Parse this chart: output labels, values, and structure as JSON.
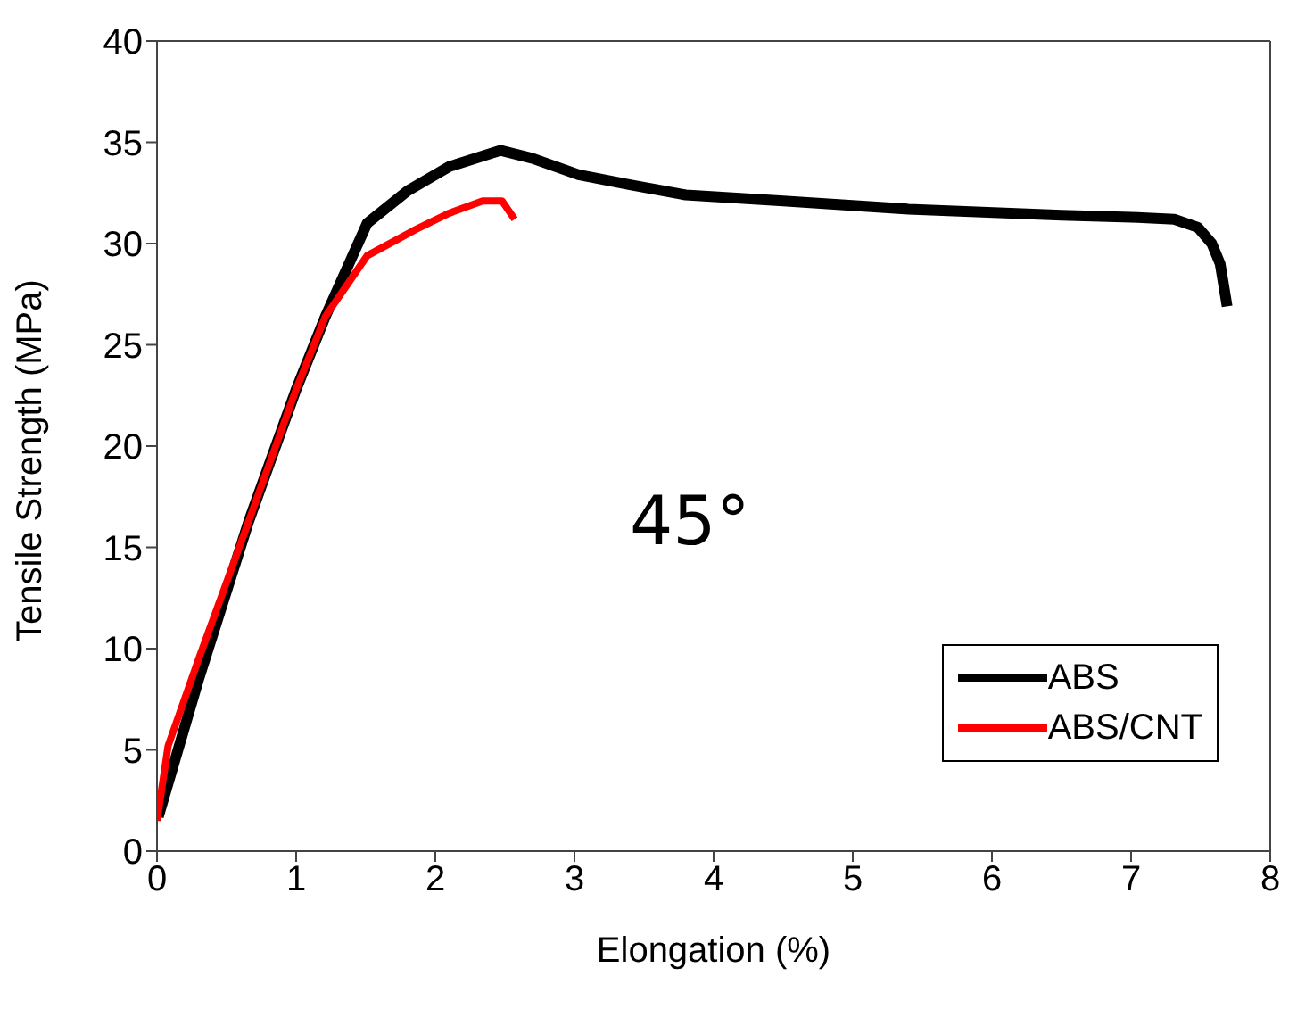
{
  "chart_data": {
    "type": "line",
    "xlabel": "Elongation (%)",
    "ylabel": "Tensile Strength (MPa)",
    "xlim": [
      0,
      8
    ],
    "xticks": [
      0,
      1,
      2,
      3,
      4,
      5,
      6,
      7,
      8
    ],
    "ylim": [
      0,
      40
    ],
    "yticks": [
      0,
      5,
      10,
      15,
      20,
      25,
      30,
      35,
      40
    ],
    "legend": "bottom right",
    "grid": false,
    "marker": "none",
    "line_style": "solid",
    "annotations": [
      "45°"
    ],
    "series": [
      {
        "name": "ABS",
        "color": "#000000",
        "x": [
          0.01,
          0.3,
          0.66,
          1.0,
          1.21,
          1.51,
          1.8,
          2.1,
          2.47,
          2.7,
          3.03,
          3.4,
          3.8,
          4.5,
          5.4,
          6.5,
          7.0,
          7.31,
          7.48,
          7.58,
          7.64,
          7.69
        ],
        "values": [
          1.7,
          8.5,
          16.3,
          22.8,
          26.4,
          31.0,
          32.6,
          33.8,
          34.6,
          34.2,
          33.4,
          32.9,
          32.4,
          32.1,
          31.7,
          31.4,
          31.3,
          31.2,
          30.8,
          30.0,
          29.0,
          26.9
        ]
      },
      {
        "name": "ABS/CNT",
        "color": "#ff0000",
        "x": [
          0.0,
          0.08,
          0.3,
          0.66,
          1.0,
          1.21,
          1.51,
          1.86,
          2.1,
          2.34,
          2.48,
          2.57
        ],
        "values": [
          1.5,
          5.2,
          9.5,
          16.3,
          22.8,
          26.4,
          29.4,
          30.7,
          31.5,
          32.1,
          32.1,
          31.2
        ]
      }
    ]
  }
}
